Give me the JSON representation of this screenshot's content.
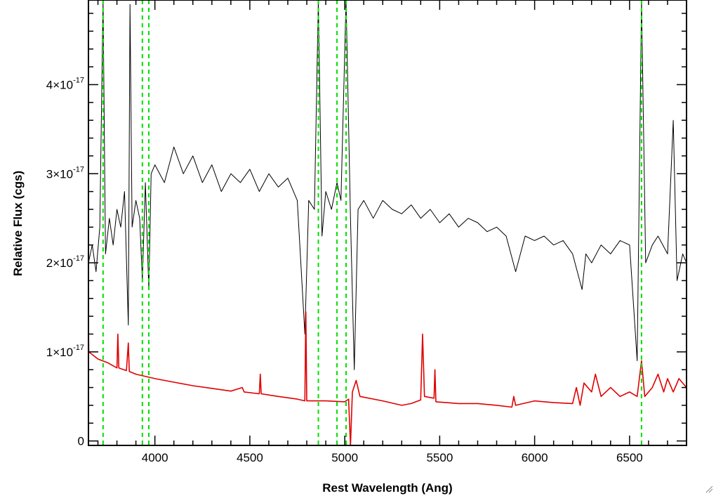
{
  "chart_data": {
    "type": "line",
    "xlabel": "Rest Wavelength (Ang)",
    "ylabel": "Relative Flux (cgs)",
    "xlim": [
      3650,
      6800
    ],
    "ylim": [
      -5e-19,
      4.95e-17
    ],
    "x_ticks": [
      4000,
      4500,
      5000,
      5500,
      6000,
      6500
    ],
    "x_tick_labels": [
      "4000",
      "4500",
      "5000",
      "5500",
      "6000",
      "6500"
    ],
    "y_ticks": [
      0,
      1e-17,
      2e-17,
      3e-17,
      4e-17
    ],
    "y_tick_labels": [
      {
        "base": "0",
        "exp": ""
      },
      {
        "base": "1×10",
        "exp": "-17"
      },
      {
        "base": "2×10",
        "exp": "-17"
      },
      {
        "base": "3×10",
        "exp": "-17"
      },
      {
        "base": "4×10",
        "exp": "-17"
      }
    ],
    "grid": false,
    "legend": "none",
    "series": [
      {
        "color": "#000000",
        "points": [
          [
            3650,
            2.0
          ],
          [
            3670,
            2.2
          ],
          [
            3690,
            1.9
          ],
          [
            3710,
            2.4
          ],
          [
            3727,
            4.95
          ],
          [
            3740,
            2.1
          ],
          [
            3760,
            2.5
          ],
          [
            3780,
            2.2
          ],
          [
            3800,
            2.6
          ],
          [
            3820,
            2.4
          ],
          [
            3840,
            2.8
          ],
          [
            3860,
            1.3
          ],
          [
            3869,
            4.9
          ],
          [
            3880,
            2.4
          ],
          [
            3900,
            2.7
          ],
          [
            3920,
            2.5
          ],
          [
            3934,
            1.8
          ],
          [
            3950,
            2.9
          ],
          [
            3968,
            1.7
          ],
          [
            3980,
            3.0
          ],
          [
            4000,
            3.1
          ],
          [
            4050,
            2.9
          ],
          [
            4100,
            3.3
          ],
          [
            4150,
            3.0
          ],
          [
            4200,
            3.2
          ],
          [
            4250,
            2.9
          ],
          [
            4300,
            3.1
          ],
          [
            4350,
            2.8
          ],
          [
            4400,
            3.0
          ],
          [
            4450,
            2.9
          ],
          [
            4500,
            3.05
          ],
          [
            4550,
            2.8
          ],
          [
            4600,
            3.0
          ],
          [
            4650,
            2.85
          ],
          [
            4700,
            2.95
          ],
          [
            4750,
            2.7
          ],
          [
            4790,
            1.2
          ],
          [
            4810,
            2.7
          ],
          [
            4840,
            2.6
          ],
          [
            4861,
            4.95
          ],
          [
            4880,
            2.3
          ],
          [
            4900,
            2.8
          ],
          [
            4930,
            2.6
          ],
          [
            4959,
            2.9
          ],
          [
            4980,
            2.7
          ],
          [
            5007,
            4.95
          ],
          [
            5030,
            2.5
          ],
          [
            5050,
            0.8
          ],
          [
            5070,
            2.6
          ],
          [
            5100,
            2.7
          ],
          [
            5150,
            2.5
          ],
          [
            5200,
            2.7
          ],
          [
            5250,
            2.6
          ],
          [
            5300,
            2.55
          ],
          [
            5350,
            2.65
          ],
          [
            5400,
            2.5
          ],
          [
            5450,
            2.6
          ],
          [
            5500,
            2.45
          ],
          [
            5550,
            2.55
          ],
          [
            5600,
            2.4
          ],
          [
            5650,
            2.5
          ],
          [
            5700,
            2.45
          ],
          [
            5750,
            2.35
          ],
          [
            5800,
            2.4
          ],
          [
            5850,
            2.3
          ],
          [
            5900,
            1.9
          ],
          [
            5950,
            2.3
          ],
          [
            6000,
            2.25
          ],
          [
            6050,
            2.3
          ],
          [
            6100,
            2.2
          ],
          [
            6150,
            2.25
          ],
          [
            6200,
            2.1
          ],
          [
            6250,
            1.7
          ],
          [
            6270,
            2.1
          ],
          [
            6300,
            2.0
          ],
          [
            6350,
            2.2
          ],
          [
            6400,
            2.1
          ],
          [
            6450,
            2.25
          ],
          [
            6500,
            2.2
          ],
          [
            6540,
            0.9
          ],
          [
            6563,
            4.95
          ],
          [
            6585,
            2.0
          ],
          [
            6620,
            2.2
          ],
          [
            6650,
            2.3
          ],
          [
            6700,
            2.1
          ],
          [
            6730,
            3.6
          ],
          [
            6750,
            1.8
          ],
          [
            6780,
            2.1
          ],
          [
            6800,
            2.0
          ]
        ]
      },
      {
        "color": "#e00000",
        "points": [
          [
            3650,
            1.35
          ],
          [
            3652,
            1.0
          ],
          [
            3700,
            0.92
          ],
          [
            3750,
            0.88
          ],
          [
            3800,
            0.82
          ],
          [
            3805,
            1.2
          ],
          [
            3810,
            0.82
          ],
          [
            3850,
            0.79
          ],
          [
            3860,
            1.1
          ],
          [
            3865,
            0.78
          ],
          [
            3900,
            0.75
          ],
          [
            4000,
            0.7
          ],
          [
            4100,
            0.66
          ],
          [
            4200,
            0.62
          ],
          [
            4300,
            0.59
          ],
          [
            4400,
            0.56
          ],
          [
            4460,
            0.6
          ],
          [
            4470,
            0.55
          ],
          [
            4550,
            0.53
          ],
          [
            4555,
            0.75
          ],
          [
            4560,
            0.53
          ],
          [
            4650,
            0.5
          ],
          [
            4750,
            0.47
          ],
          [
            4790,
            0.45
          ],
          [
            4795,
            1.45
          ],
          [
            4800,
            0.45
          ],
          [
            4900,
            0.45
          ],
          [
            5000,
            0.44
          ],
          [
            5020,
            0.47
          ],
          [
            5030,
            -0.05
          ],
          [
            5040,
            0.55
          ],
          [
            5060,
            0.68
          ],
          [
            5080,
            0.5
          ],
          [
            5200,
            0.45
          ],
          [
            5300,
            0.4
          ],
          [
            5350,
            0.42
          ],
          [
            5400,
            0.46
          ],
          [
            5410,
            1.2
          ],
          [
            5420,
            0.5
          ],
          [
            5470,
            0.48
          ],
          [
            5475,
            0.8
          ],
          [
            5480,
            0.44
          ],
          [
            5600,
            0.42
          ],
          [
            5700,
            0.42
          ],
          [
            5800,
            0.4
          ],
          [
            5880,
            0.38
          ],
          [
            5890,
            0.5
          ],
          [
            5900,
            0.4
          ],
          [
            6000,
            0.45
          ],
          [
            6100,
            0.43
          ],
          [
            6200,
            0.42
          ],
          [
            6220,
            0.6
          ],
          [
            6240,
            0.4
          ],
          [
            6260,
            0.65
          ],
          [
            6300,
            0.55
          ],
          [
            6320,
            0.75
          ],
          [
            6350,
            0.5
          ],
          [
            6400,
            0.6
          ],
          [
            6450,
            0.5
          ],
          [
            6500,
            0.55
          ],
          [
            6540,
            0.5
          ],
          [
            6563,
            0.9
          ],
          [
            6580,
            0.5
          ],
          [
            6620,
            0.6
          ],
          [
            6650,
            0.75
          ],
          [
            6680,
            0.55
          ],
          [
            6700,
            0.7
          ],
          [
            6730,
            0.55
          ],
          [
            6760,
            0.7
          ],
          [
            6800,
            0.6
          ]
        ]
      }
    ],
    "vertical_lines": {
      "color": "#00e000",
      "x": [
        3727,
        3934,
        3968,
        4861,
        4959,
        5007,
        6563
      ]
    }
  }
}
